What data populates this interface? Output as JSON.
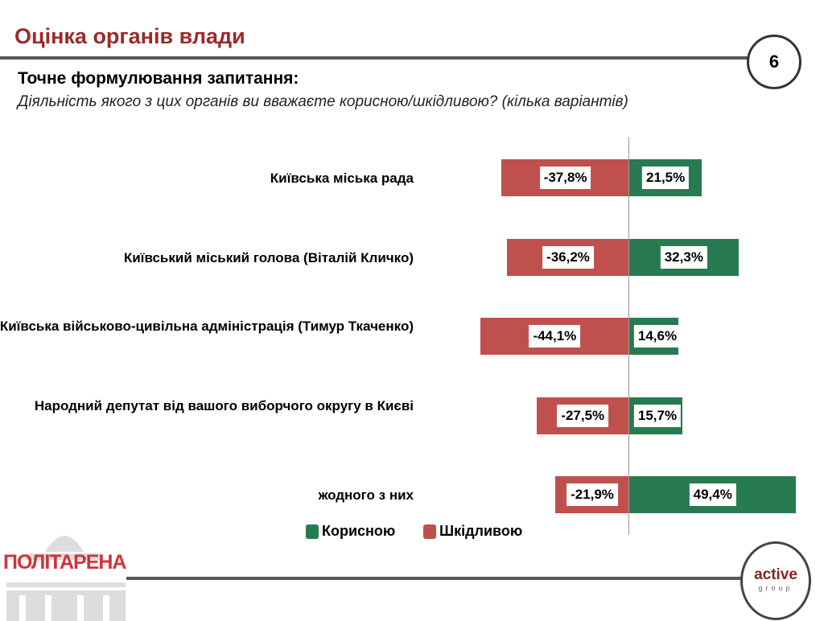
{
  "header": {
    "title": "Оцінка органів влади",
    "page_number": "6",
    "question_heading": "Точне формулювання запитання:",
    "question_text": "Діяльність якого з цих органів ви вважаєте корисною/шкідливою? (кілька варіантів)"
  },
  "chart_data": {
    "type": "bar",
    "orientation": "horizontal-diverging",
    "categories": [
      "Київська міська рада",
      "Київський міський голова (Віталій Кличко)",
      "Київська військово-цивільна адміністрація (Тимур Ткаченко)",
      "Народний депутат від вашого виборчого округу в Києві",
      "жодного з них"
    ],
    "series": [
      {
        "name": "Корисною",
        "color": "#287a50",
        "values": [
          21.5,
          32.3,
          14.6,
          15.7,
          49.4
        ],
        "labels": [
          "21,5%",
          "32,3%",
          "14,6%",
          "15,7%",
          "49,4%"
        ]
      },
      {
        "name": "Шкідливою",
        "color": "#c0504d",
        "values": [
          -37.8,
          -36.2,
          -44.1,
          -27.5,
          -21.9
        ],
        "labels": [
          "-37,8%",
          "-36,2%",
          "-44,1%",
          "-27,5%",
          "-21,9%"
        ]
      }
    ],
    "legend": "bottom"
  },
  "footer": {
    "left_logo": "ПОЛІТАРЕНА",
    "right_logo_main": "active",
    "right_logo_sub": "group"
  }
}
